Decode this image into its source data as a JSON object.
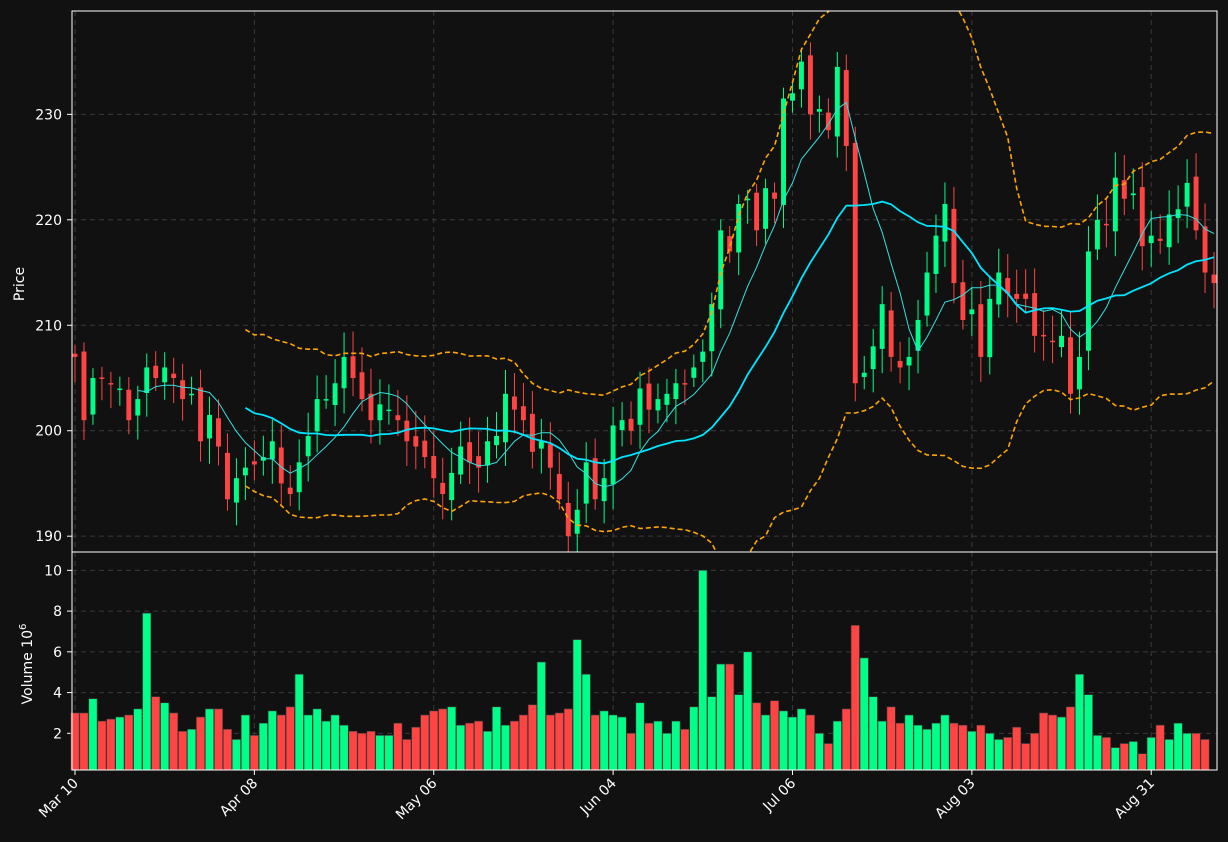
{
  "chart_data": {
    "type": "candlestick",
    "price_panel": {
      "ylabel": "Price",
      "ylim": [
        188.5,
        239.8
      ],
      "yticks": [
        "190",
        "200",
        "210",
        "220",
        "230"
      ],
      "grid": true
    },
    "volume_panel": {
      "ylabel": "Volume  10",
      "ylabel_exponent": "6",
      "ylim": [
        0.2,
        10.9
      ],
      "yticks": [
        "2",
        "4",
        "6",
        "8",
        "10"
      ],
      "grid": true
    },
    "x_ticks": [
      "Mar 10",
      "Apr 08",
      "May 06",
      "Jun 04",
      "Jul 06",
      "Aug 03",
      "Aug 31"
    ],
    "x_tick_index": [
      0,
      20,
      40,
      60,
      80,
      100,
      120
    ],
    "colors": {
      "up": "#00ff88",
      "down": "#ff4444",
      "background": "#111111",
      "sma_fast": "#33e0e0",
      "sma_slow": "#00e5ff",
      "bollinger": "#ffa500",
      "grid": "#3a3a3a",
      "axis": "#ffffff"
    },
    "series": [
      {
        "kind": "line",
        "role": "sma_fast",
        "smoothing": 8
      },
      {
        "kind": "line",
        "role": "sma_slow",
        "smoothing": 20
      },
      {
        "kind": "band",
        "role": "bollinger",
        "smoothing": 20,
        "k": 2
      }
    ],
    "closes": [
      207.0,
      201.0,
      205.0,
      205.0,
      204.5,
      204.0,
      201.0,
      203.0,
      206.0,
      205.0,
      206.0,
      205.0,
      203.0,
      203.5,
      199.0,
      201.5,
      198.5,
      193.5,
      195.5,
      196.5,
      196.8,
      197.5,
      199.0,
      195.0,
      194.0,
      197.0,
      199.5,
      203.0,
      203.0,
      204.5,
      207.0,
      205.0,
      203.0,
      201.0,
      202.5,
      202.0,
      201.0,
      199.0,
      198.5,
      197.5,
      195.5,
      194.0,
      196.0,
      198.5,
      197.0,
      196.5,
      199.0,
      199.5,
      203.5,
      202.0,
      201.0,
      198.0,
      199.0,
      196.5,
      193.5,
      190.0,
      192.5,
      197.0,
      193.5,
      195.5,
      200.5,
      201.0,
      200.0,
      204.0,
      202.0,
      203.0,
      203.5,
      204.5,
      204.5,
      206.0,
      207.5,
      212.0,
      219.0,
      217.0,
      221.5,
      222.0,
      219.0,
      223.0,
      222.0,
      231.5,
      232.0,
      235.0,
      230.0,
      230.5,
      228.5,
      234.5,
      227.0,
      204.5,
      205.5,
      208.0,
      212.0,
      207.0,
      206.0,
      207.0,
      210.5,
      215.0,
      218.5,
      221.5,
      214.0,
      210.5,
      211.5,
      207.0,
      212.5,
      215.0,
      213.0,
      212.5,
      212.5,
      209.0,
      209.0,
      208.5,
      209.0,
      203.5,
      207.0,
      217.0,
      220.0,
      219.5,
      224.0,
      222.0,
      222.5,
      217.5,
      218.5,
      218.0,
      220.5,
      221.0,
      223.5,
      219.0,
      215.0,
      214.0
    ],
    "volumes": [
      3.0,
      3.0,
      3.7,
      2.6,
      2.7,
      2.8,
      2.9,
      3.2,
      7.9,
      3.8,
      3.5,
      3.0,
      2.1,
      2.2,
      2.8,
      3.2,
      3.2,
      2.2,
      1.7,
      2.9,
      1.9,
      2.5,
      3.1,
      2.9,
      3.3,
      4.9,
      2.9,
      3.2,
      2.6,
      2.9,
      2.4,
      2.1,
      2.0,
      2.1,
      1.9,
      1.9,
      2.5,
      1.7,
      2.3,
      2.9,
      3.1,
      3.2,
      3.3,
      2.4,
      2.5,
      2.6,
      2.1,
      3.3,
      2.4,
      2.6,
      2.9,
      3.4,
      5.5,
      2.9,
      3.0,
      3.2,
      6.6,
      4.9,
      2.9,
      3.1,
      2.9,
      2.8,
      2.0,
      3.5,
      2.5,
      2.6,
      2.0,
      2.6,
      2.2,
      3.3,
      10.0,
      3.8,
      5.4,
      5.4,
      3.9,
      6.0,
      3.5,
      2.9,
      3.6,
      3.1,
      2.8,
      3.2,
      2.9,
      2.0,
      1.5,
      2.6,
      3.2,
      7.3,
      5.7,
      3.8,
      2.6,
      3.3,
      2.5,
      2.9,
      2.4,
      2.2,
      2.5,
      2.9,
      2.5,
      2.4,
      2.1,
      2.4,
      2.0,
      1.7,
      1.8,
      2.3,
      1.5,
      2.0,
      3.0,
      2.9,
      2.8,
      3.3,
      4.9,
      3.9,
      1.9,
      1.8,
      1.3,
      1.5,
      1.6,
      1.0,
      1.8,
      2.4,
      1.7,
      2.5,
      2.0,
      2.0,
      1.7
    ]
  }
}
